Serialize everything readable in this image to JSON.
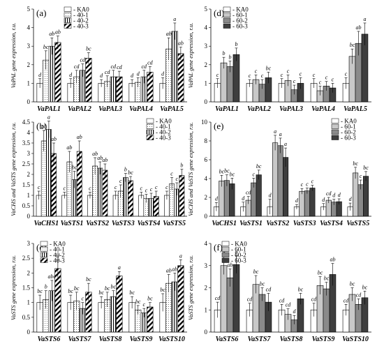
{
  "colors": {
    "g_ka0": "#ffffff",
    "g_60_1": "#c8c8c8",
    "g_60_2": "#8a8a8a",
    "g_60_3": "#3e3e3e",
    "stroke": "#000000"
  },
  "chart_data": [
    {
      "panel": "(a)",
      "type": "bar",
      "ylabel": "VaPAL gene expression, r.u.",
      "ylim": [
        0,
        5
      ],
      "yticks": [
        0,
        1,
        2,
        3,
        4,
        5
      ],
      "legend": [
        "KA0",
        "40-1",
        "40-2",
        "40-3"
      ],
      "legend_position": "top-left",
      "styles": [
        "white",
        "dotted",
        "striped",
        "hatched"
      ],
      "categories": [
        "VaPAL1",
        "VaPAL2",
        "VaPAL3",
        "VaPAL4",
        "VaPAL5"
      ],
      "series": [
        {
          "name": "KA0",
          "values": [
            1.0,
            1.0,
            1.0,
            1.0,
            1.0
          ],
          "err": [
            0.25,
            0.25,
            0.2,
            0.2,
            0.3
          ],
          "letters": [
            "d",
            "d",
            "d",
            "d",
            "d"
          ]
        },
        {
          "name": "40-1",
          "values": [
            2.25,
            1.35,
            1.1,
            1.05,
            2.85
          ],
          "err": [
            0.5,
            0.35,
            0.3,
            0.25,
            0.6
          ],
          "letters": [
            "bc",
            "cd",
            "cd",
            "d",
            "ab"
          ]
        },
        {
          "name": "40-2",
          "values": [
            3.0,
            1.7,
            1.35,
            1.35,
            3.8
          ],
          "err": [
            0.45,
            0.35,
            0.35,
            0.35,
            0.45
          ],
          "letters": [
            "ab",
            "cd",
            "cd",
            "cd",
            "a"
          ]
        },
        {
          "name": "40-3",
          "values": [
            3.2,
            2.35,
            1.35,
            1.6,
            2.6
          ],
          "err": [
            0.35,
            0.3,
            0.3,
            0.3,
            0.35
          ],
          "letters": [
            "ab",
            "bc",
            "cd",
            "cd",
            "ab"
          ]
        }
      ]
    },
    {
      "panel": "(b)",
      "type": "bar",
      "ylabel": "VaCHS and VaSTS gene expression, r.u.",
      "ylim": [
        0,
        4.5
      ],
      "yticks": [
        0,
        0.5,
        1,
        1.5,
        2,
        2.5,
        3,
        3.5,
        4,
        4.5
      ],
      "legend": [
        "KA0",
        "40-1",
        "40-2",
        "40-3"
      ],
      "legend_position": "top-right",
      "styles": [
        "white",
        "dotted",
        "striped",
        "hatched"
      ],
      "categories": [
        "VaCHS1",
        "VaSTS1",
        "VaSTS2",
        "VaSTS3",
        "VaSTS4",
        "VaSTS5"
      ],
      "series": [
        {
          "name": "KA0",
          "values": [
            1.0,
            1.0,
            1.0,
            1.0,
            1.0,
            1.0
          ],
          "err": [
            0.2,
            0.15,
            0.15,
            0.2,
            0.15,
            0.2
          ],
          "letters": [
            "c",
            "c",
            "c",
            "c",
            "c",
            "c"
          ]
        },
        {
          "name": "40-1",
          "values": [
            3.6,
            2.6,
            2.4,
            1.2,
            0.85,
            1.55
          ],
          "err": [
            0.5,
            0.5,
            0.4,
            0.3,
            0.2,
            0.3
          ],
          "letters": [
            "ab",
            "ab",
            "ab",
            "c",
            "c",
            "c"
          ]
        },
        {
          "name": "40-2",
          "values": [
            4.15,
            1.75,
            2.3,
            1.85,
            0.85,
            1.3
          ],
          "err": [
            0.4,
            0.4,
            0.3,
            0.2,
            0.25,
            0.3
          ],
          "letters": [
            "a",
            "bc",
            "ab",
            "b",
            "c",
            "c"
          ]
        },
        {
          "name": "40-3",
          "values": [
            3.0,
            3.1,
            2.2,
            1.7,
            0.95,
            1.95
          ],
          "err": [
            0.5,
            0.5,
            0.3,
            0.2,
            0.25,
            0.3
          ],
          "letters": [
            "ab",
            "ab",
            "ab",
            "bc",
            "c",
            "b"
          ]
        }
      ]
    },
    {
      "panel": "(c)",
      "type": "bar",
      "ylabel": "VaSTS gene expression, r.u.",
      "ylim": [
        0,
        3
      ],
      "yticks": [
        0,
        0.5,
        1,
        1.5,
        2,
        2.5,
        3
      ],
      "legend": [
        "KA0",
        "40-1",
        "40-2",
        "40-3"
      ],
      "legend_position": "top-left",
      "styles": [
        "white",
        "dotted",
        "striped",
        "hatched"
      ],
      "categories": [
        "VaSTS6",
        "VaSTS7",
        "VaSTS8",
        "VaSTS9",
        "VaSTS10"
      ],
      "series": [
        {
          "name": "KA0",
          "values": [
            1.0,
            1.0,
            1.0,
            1.0,
            1.0
          ],
          "err": [
            0.25,
            0.25,
            0.2,
            0.2,
            0.3
          ],
          "letters": [
            "bc",
            "bc",
            "bc",
            "bc",
            "bc"
          ]
        },
        {
          "name": "40-1",
          "values": [
            1.1,
            1.05,
            1.1,
            0.75,
            1.65
          ],
          "err": [
            0.3,
            0.3,
            0.25,
            0.15,
            0.3
          ],
          "letters": [
            "b",
            "bc",
            "bc",
            "bc",
            "ab"
          ]
        },
        {
          "name": "40-2",
          "values": [
            1.4,
            0.8,
            1.2,
            0.65,
            1.7
          ],
          "err": [
            0.35,
            0.2,
            0.2,
            0.15,
            0.3
          ],
          "letters": [
            "abc",
            "c",
            "bc",
            "c",
            "ab"
          ]
        },
        {
          "name": "40-3",
          "values": [
            2.15,
            1.35,
            1.9,
            0.85,
            2.25
          ],
          "err": [
            0.3,
            0.3,
            0.15,
            0.15,
            0.2
          ],
          "letters": [
            "a",
            "bc",
            "a",
            "bc",
            "a"
          ]
        }
      ]
    },
    {
      "panel": "(d)",
      "type": "bar",
      "ylabel": "VaPAL gene expression, r.u.",
      "ylim": [
        0,
        5
      ],
      "yticks": [
        0,
        1,
        2,
        3,
        4,
        5
      ],
      "legend": [
        "KA0",
        "60-1",
        "60-2",
        "60-3"
      ],
      "legend_position": "top-left",
      "styles": [
        "white",
        "light",
        "mid",
        "dark"
      ],
      "categories": [
        "VaPAL1",
        "VaPAL2",
        "VaPAL3",
        "VaPAL4",
        "VaPAL5"
      ],
      "series": [
        {
          "name": "KA0",
          "values": [
            1.0,
            1.0,
            1.0,
            1.0,
            1.0
          ],
          "err": [
            0.25,
            0.2,
            0.25,
            0.25,
            0.3
          ],
          "letters": [
            "c",
            "c",
            "c",
            "c",
            "c"
          ]
        },
        {
          "name": "60-1",
          "values": [
            2.1,
            1.2,
            1.15,
            0.6,
            2.45
          ],
          "err": [
            0.3,
            0.25,
            0.3,
            0.25,
            0.4
          ],
          "letters": [
            "b",
            "c",
            "c",
            "c",
            "bc"
          ]
        },
        {
          "name": "60-2",
          "values": [
            1.9,
            0.95,
            0.65,
            0.85,
            3.15
          ],
          "err": [
            0.3,
            0.25,
            0.25,
            0.25,
            0.65
          ],
          "letters": [
            "b",
            "c",
            "c",
            "c",
            "ab"
          ]
        },
        {
          "name": "60-3",
          "values": [
            2.55,
            1.3,
            1.0,
            0.75,
            3.65
          ],
          "err": [
            0.35,
            0.3,
            0.3,
            0.25,
            0.6
          ],
          "letters": [
            "b",
            "bc",
            "c",
            "c",
            "a"
          ]
        }
      ]
    },
    {
      "panel": "(e)",
      "type": "bar",
      "ylabel": "VaCHS and VaSTS gene expression, r.u.",
      "ylim": [
        0,
        10
      ],
      "yticks": [
        0,
        2,
        4,
        6,
        8,
        10
      ],
      "legend": [
        "KA0",
        "60-1",
        "60-2",
        "60-3"
      ],
      "legend_position": "top-right",
      "styles": [
        "white",
        "light",
        "mid",
        "dark"
      ],
      "categories": [
        "VaCHS1",
        "VaSTS1",
        "VaSTS2",
        "VaSTS3",
        "VaSTS4",
        "VaSTS5"
      ],
      "series": [
        {
          "name": "KA0",
          "values": [
            1.0,
            1.0,
            1.0,
            1.0,
            1.0,
            1.0
          ],
          "err": [
            0.45,
            0.5,
            0.8,
            0.25,
            0.35,
            0.4
          ],
          "letters": [
            "d",
            "d",
            "d",
            "d",
            "d",
            "d"
          ]
        },
        {
          "name": "60-1",
          "values": [
            3.75,
            1.7,
            7.8,
            2.65,
            1.7,
            4.6
          ],
          "err": [
            0.6,
            0.4,
            0.8,
            0.3,
            0.3,
            0.6
          ],
          "letters": [
            "bc",
            "cd",
            "a",
            "c",
            "cd",
            "bc"
          ]
        },
        {
          "name": "60-2",
          "values": [
            3.8,
            3.55,
            7.5,
            2.7,
            1.5,
            3.35
          ],
          "err": [
            0.6,
            0.5,
            0.8,
            0.3,
            0.3,
            0.5
          ],
          "letters": [
            "bc",
            "c",
            "a",
            "c",
            "d",
            "c"
          ]
        },
        {
          "name": "60-3",
          "values": [
            3.45,
            4.4,
            6.25,
            3.0,
            1.55,
            4.25
          ],
          "err": [
            0.6,
            0.5,
            1.0,
            0.3,
            0.3,
            0.5
          ],
          "letters": [
            "bc",
            "bc",
            "a",
            "c",
            "d",
            "bc"
          ]
        }
      ]
    },
    {
      "panel": "(f)",
      "type": "bar",
      "ylabel": "VaSTS gene expression, r.u.",
      "ylim": [
        0,
        4
      ],
      "yticks": [
        0,
        1,
        2,
        3,
        4
      ],
      "legend": [
        "KA0",
        "60-1",
        "60-2",
        "60-3"
      ],
      "legend_position": "top-left",
      "styles": [
        "white",
        "light",
        "mid",
        "dark"
      ],
      "categories": [
        "VaSTS6",
        "VaSTS7",
        "VaSTS8",
        "VaSTS9",
        "VaSTS10"
      ],
      "series": [
        {
          "name": "KA0",
          "values": [
            1.0,
            1.0,
            1.0,
            1.0,
            1.0
          ],
          "err": [
            0.35,
            0.3,
            0.25,
            0.3,
            0.25
          ],
          "letters": [
            "cd",
            "cd",
            "cd",
            "cd",
            "cd"
          ]
        },
        {
          "name": "60-1",
          "values": [
            3.0,
            2.15,
            0.8,
            2.1,
            1.7
          ],
          "err": [
            0.4,
            0.4,
            0.25,
            0.4,
            0.3
          ],
          "letters": [
            "a",
            "bc",
            "cd",
            "bc",
            "bc"
          ]
        },
        {
          "name": "60-2",
          "values": [
            2.45,
            1.7,
            0.55,
            1.95,
            1.25
          ],
          "err": [
            0.4,
            0.3,
            0.2,
            0.3,
            0.25
          ],
          "letters": [
            "ab",
            "bc",
            "d",
            "bc",
            "cd"
          ]
        },
        {
          "name": "60-3",
          "values": [
            3.05,
            1.35,
            1.5,
            2.6,
            1.55
          ],
          "err": [
            0.4,
            0.4,
            0.25,
            0.5,
            0.3
          ],
          "letters": [
            "a",
            "cd",
            "bc",
            "ab",
            "bc"
          ]
        }
      ]
    }
  ]
}
